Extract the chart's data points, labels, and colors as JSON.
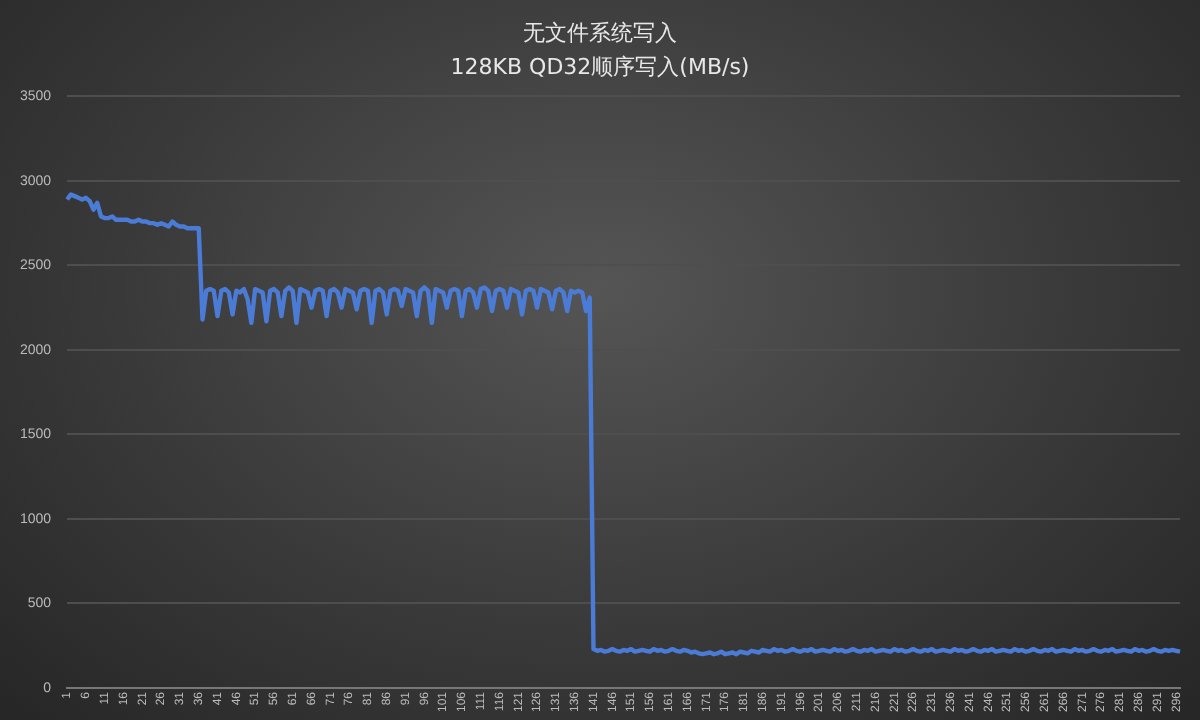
{
  "chart_data": {
    "type": "line",
    "title": "无文件系统写入",
    "subtitle": "128KB  QD32顺序写入(MB/s)",
    "categories": [
      "1",
      null,
      null,
      null,
      null,
      "6",
      null,
      null,
      null,
      null,
      "11",
      null,
      null,
      null,
      null,
      "16",
      null,
      null,
      null,
      null,
      "21",
      null,
      null,
      null,
      null,
      "26",
      null,
      null,
      null,
      null,
      "31",
      null,
      null,
      null,
      null,
      "36",
      null,
      null,
      null,
      null,
      "41",
      null,
      null,
      null,
      null,
      "46",
      null,
      null,
      null,
      null,
      "51",
      null,
      null,
      null,
      null,
      "56",
      null,
      null,
      null,
      null,
      "61",
      null,
      null,
      null,
      null,
      "66",
      null,
      null,
      null,
      null,
      "71",
      null,
      null,
      null,
      null,
      "76",
      null,
      null,
      null,
      null,
      "81",
      null,
      null,
      null,
      null,
      "86",
      null,
      null,
      null,
      null,
      "91",
      null,
      null,
      null,
      null,
      "96",
      null,
      null,
      null,
      null,
      "101",
      null,
      null,
      null,
      null,
      "106",
      null,
      null,
      null,
      null,
      "111",
      null,
      null,
      null,
      null,
      "116",
      null,
      null,
      null,
      null,
      "121",
      null,
      null,
      null,
      null,
      "126",
      null,
      null,
      null,
      null,
      "131",
      null,
      null,
      null,
      null,
      "136",
      null,
      null,
      null,
      null,
      "141",
      null,
      null,
      null,
      null,
      "146",
      null,
      null,
      null,
      null,
      "151",
      null,
      null,
      null,
      null,
      "156",
      null,
      null,
      null,
      null,
      "161",
      null,
      null,
      null,
      null,
      "166",
      null,
      null,
      null,
      null,
      "171",
      null,
      null,
      null,
      null,
      "176",
      null,
      null,
      null,
      null,
      "181",
      null,
      null,
      null,
      null,
      "186",
      null,
      null,
      null,
      null,
      "191",
      null,
      null,
      null,
      null,
      "196",
      null,
      null,
      null,
      null,
      "201",
      null,
      null,
      null,
      null,
      "206",
      null,
      null,
      null,
      null,
      "211",
      null,
      null,
      null,
      null,
      "216",
      null,
      null,
      null,
      null,
      "221",
      null,
      null,
      null,
      null,
      "226",
      null,
      null,
      null,
      null,
      "231",
      null,
      null,
      null,
      null,
      "236",
      null,
      null,
      null,
      null,
      "241",
      null,
      null,
      null,
      null,
      "246",
      null,
      null,
      null,
      null,
      "251",
      null,
      null,
      null,
      null,
      "256",
      null,
      null,
      null,
      null,
      "261",
      null,
      null,
      null,
      null,
      "266",
      null,
      null,
      null,
      null,
      "271",
      null,
      null,
      null,
      null,
      "276",
      null,
      null,
      null,
      null,
      "281",
      null,
      null,
      null,
      null,
      "286",
      null,
      null,
      null,
      null,
      "291",
      null,
      null,
      null,
      null,
      "296",
      null
    ],
    "series": [
      {
        "color": "#4a7bd6",
        "values": [
          2890,
          2920,
          2910,
          2900,
          2890,
          2900,
          2880,
          2830,
          2870,
          2790,
          2780,
          2780,
          2790,
          2770,
          2770,
          2770,
          2770,
          2760,
          2760,
          2770,
          2760,
          2760,
          2750,
          2750,
          2740,
          2750,
          2740,
          2730,
          2760,
          2740,
          2730,
          2730,
          2720,
          2720,
          2720,
          2720,
          2180,
          2350,
          2360,
          2350,
          2200,
          2350,
          2360,
          2340,
          2210,
          2350,
          2340,
          2360,
          2300,
          2160,
          2360,
          2350,
          2340,
          2170,
          2350,
          2360,
          2340,
          2200,
          2350,
          2370,
          2350,
          2160,
          2360,
          2350,
          2340,
          2250,
          2350,
          2360,
          2350,
          2200,
          2350,
          2360,
          2340,
          2250,
          2360,
          2350,
          2340,
          2240,
          2350,
          2360,
          2350,
          2160,
          2350,
          2360,
          2340,
          2210,
          2350,
          2360,
          2350,
          2260,
          2360,
          2350,
          2340,
          2200,
          2350,
          2370,
          2350,
          2160,
          2360,
          2350,
          2340,
          2250,
          2350,
          2360,
          2350,
          2200,
          2350,
          2360,
          2340,
          2250,
          2360,
          2370,
          2350,
          2230,
          2350,
          2360,
          2350,
          2250,
          2360,
          2350,
          2340,
          2210,
          2350,
          2360,
          2350,
          2250,
          2360,
          2350,
          2340,
          2240,
          2350,
          2360,
          2340,
          2230,
          2350,
          2340,
          2350,
          2340,
          2230,
          2310,
          230,
          220,
          225,
          215,
          220,
          230,
          220,
          215,
          225,
          220,
          230,
          215,
          220,
          225,
          220,
          215,
          230,
          220,
          225,
          215,
          220,
          230,
          220,
          215,
          225,
          220,
          210,
          215,
          205,
          200,
          205,
          210,
          200,
          205,
          215,
          200,
          205,
          210,
          200,
          215,
          210,
          205,
          220,
          215,
          210,
          225,
          220,
          215,
          230,
          220,
          225,
          215,
          220,
          230,
          220,
          215,
          225,
          220,
          230,
          215,
          220,
          225,
          220,
          215,
          230,
          220,
          225,
          215,
          220,
          230,
          220,
          215,
          225,
          220,
          230,
          215,
          220,
          225,
          220,
          215,
          230,
          220,
          225,
          215,
          220,
          230,
          220,
          215,
          225,
          220,
          230,
          215,
          220,
          225,
          220,
          215,
          230,
          220,
          225,
          215,
          220,
          230,
          220,
          215,
          225,
          220,
          230,
          215,
          220,
          225,
          220,
          215,
          230,
          220,
          225,
          215,
          220,
          230,
          220,
          215,
          225,
          220,
          230,
          215,
          220,
          225,
          220,
          215,
          230,
          220,
          225,
          215,
          220,
          230,
          220,
          215,
          225,
          220,
          230,
          215,
          220,
          225,
          220,
          215,
          230,
          220,
          225,
          215,
          220,
          230,
          220,
          215,
          225,
          220,
          225,
          220,
          215
        ]
      }
    ],
    "ylim": [
      0,
      3500
    ],
    "yticks": [
      0,
      500,
      1000,
      1500,
      2000,
      2500,
      3000,
      3500
    ],
    "grid": "y",
    "legend": false,
    "marker": "none",
    "line_style": "solid"
  }
}
